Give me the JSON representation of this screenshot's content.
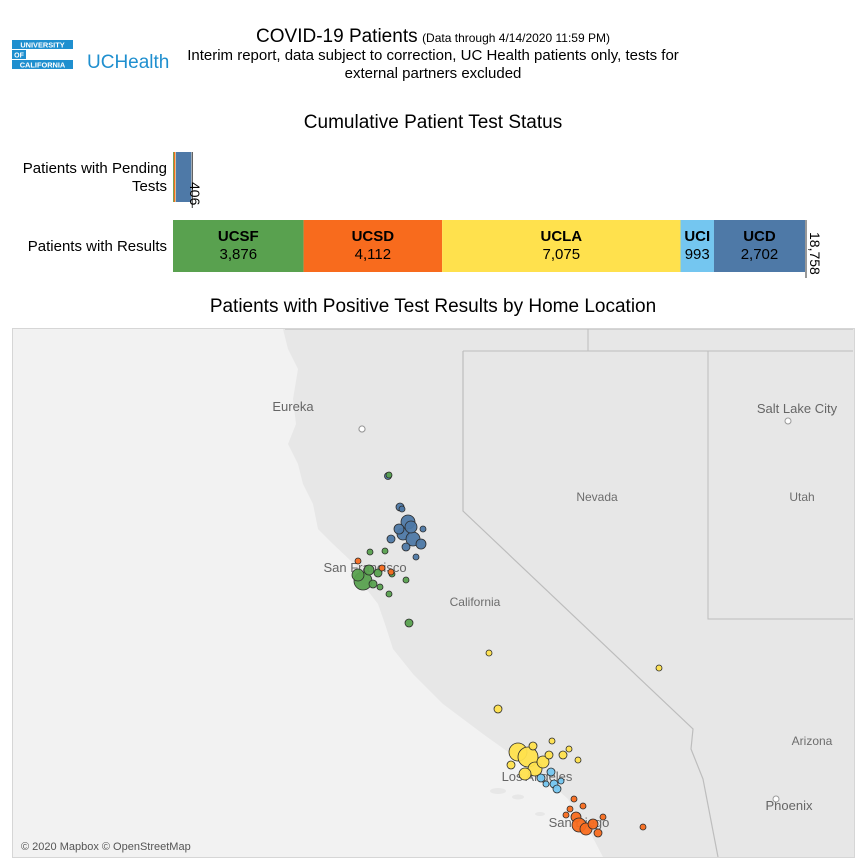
{
  "header": {
    "logo_lines": [
      "UNIVERSITY",
      "OF",
      "CALIFORNIA"
    ],
    "brand": "UCHealth",
    "title": "COVID-19 Patients",
    "title_note": "(Data through 4/14/2020 11:59 PM)",
    "subtitle": "Interim report, data subject to correction, UC Health patients only, tests for external partners excluded"
  },
  "chart_data": [
    {
      "type": "bar",
      "orientation": "horizontal-stacked",
      "title": "Cumulative Patient Test Status",
      "categories": [
        "Patients with Pending Tests",
        "Patients with Results"
      ],
      "series": [
        {
          "name": "UCSF",
          "color": "#59a14f",
          "values": [
            20,
            3876
          ]
        },
        {
          "name": "UCSD",
          "color": "#f86b1d",
          "values": [
            32,
            4112
          ]
        },
        {
          "name": "UCLA",
          "color": "#ffe14d",
          "values": [
            8,
            7075
          ]
        },
        {
          "name": "UCI",
          "color": "#74c6f0",
          "values": [
            6,
            993
          ]
        },
        {
          "name": "UCD",
          "color": "#4e79a7",
          "values": [
            340,
            2702
          ]
        }
      ],
      "totals": [
        "406",
        "18,758"
      ],
      "value_labels": [
        "3,876",
        "4,112",
        "7,075",
        "993",
        "2,702"
      ]
    },
    {
      "type": "scatter",
      "title": "Patients with Positive Test Results by Home Location",
      "places": [
        {
          "name": "Eureka"
        },
        {
          "name": "Salt Lake City"
        },
        {
          "name": "Nevada"
        },
        {
          "name": "Utah"
        },
        {
          "name": "San Francisco"
        },
        {
          "name": "California"
        },
        {
          "name": "Arizona"
        },
        {
          "name": "Phoenix"
        },
        {
          "name": "Los Angeles"
        },
        {
          "name": "San Diego"
        }
      ],
      "attribution": "© 2020 Mapbox © OpenStreetMap",
      "colors": {
        "UCSF": "#59a14f",
        "UCSD": "#f86b1d",
        "UCLA": "#ffe14d",
        "UCI": "#74c6f0",
        "UCD": "#4e79a7"
      }
    }
  ]
}
